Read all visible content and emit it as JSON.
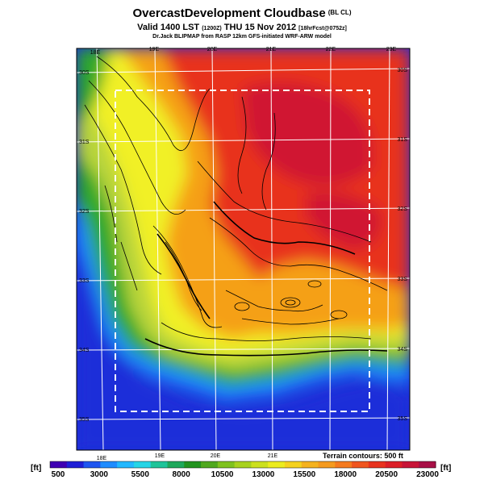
{
  "header": {
    "title": "OvercastDevelopment Cloudbase",
    "title_tag": "(BL CL)",
    "valid_prefix": "Valid 1400 LST",
    "valid_code": "(1200Z)",
    "valid_date": "THU 15 Nov 2012",
    "forecast_tag": "[18hrFcst@0752z]",
    "credit": "Dr.Jack BLIPMAP from RASP 12km GFS-initiated WRF-ARW model"
  },
  "map": {
    "lon_labels_top": [
      "18E",
      "19E",
      "20E",
      "21E",
      "22E",
      "23E"
    ],
    "lon_labels_bottom": [
      "18E",
      "19E",
      "20E",
      "21E"
    ],
    "lat_labels": [
      "30S",
      "31S",
      "32S",
      "33S",
      "34S",
      "35S"
    ],
    "contour_note": "Terrain contours: 500 ft",
    "colors": {
      "deep_blue": "#1e2fd9",
      "light_blue": "#1e90ff",
      "green": "#2ea82a",
      "yellow_green": "#b8d43a",
      "yellow": "#f1f025",
      "orange": "#f5a019",
      "red": "#e8301c",
      "crimson": "#d01430"
    }
  },
  "colorbar": {
    "unit": "[ft]",
    "tick_labels": [
      "500",
      "3000",
      "5500",
      "8000",
      "10500",
      "13000",
      "15500",
      "18000",
      "20500",
      "23000"
    ],
    "colors": [
      "#3f00b3",
      "#1f1fd6",
      "#1f55f0",
      "#1f8cff",
      "#22b8ff",
      "#25d5e6",
      "#1fc499",
      "#1fa85a",
      "#22931f",
      "#4fa81f",
      "#7fc21f",
      "#a8d21f",
      "#cce01f",
      "#ecec1f",
      "#f5d21f",
      "#f5b21f",
      "#f59a1f",
      "#f57a1f",
      "#f0551f",
      "#e8331f",
      "#dc1f28",
      "#c81437",
      "#a80f46"
    ]
  }
}
